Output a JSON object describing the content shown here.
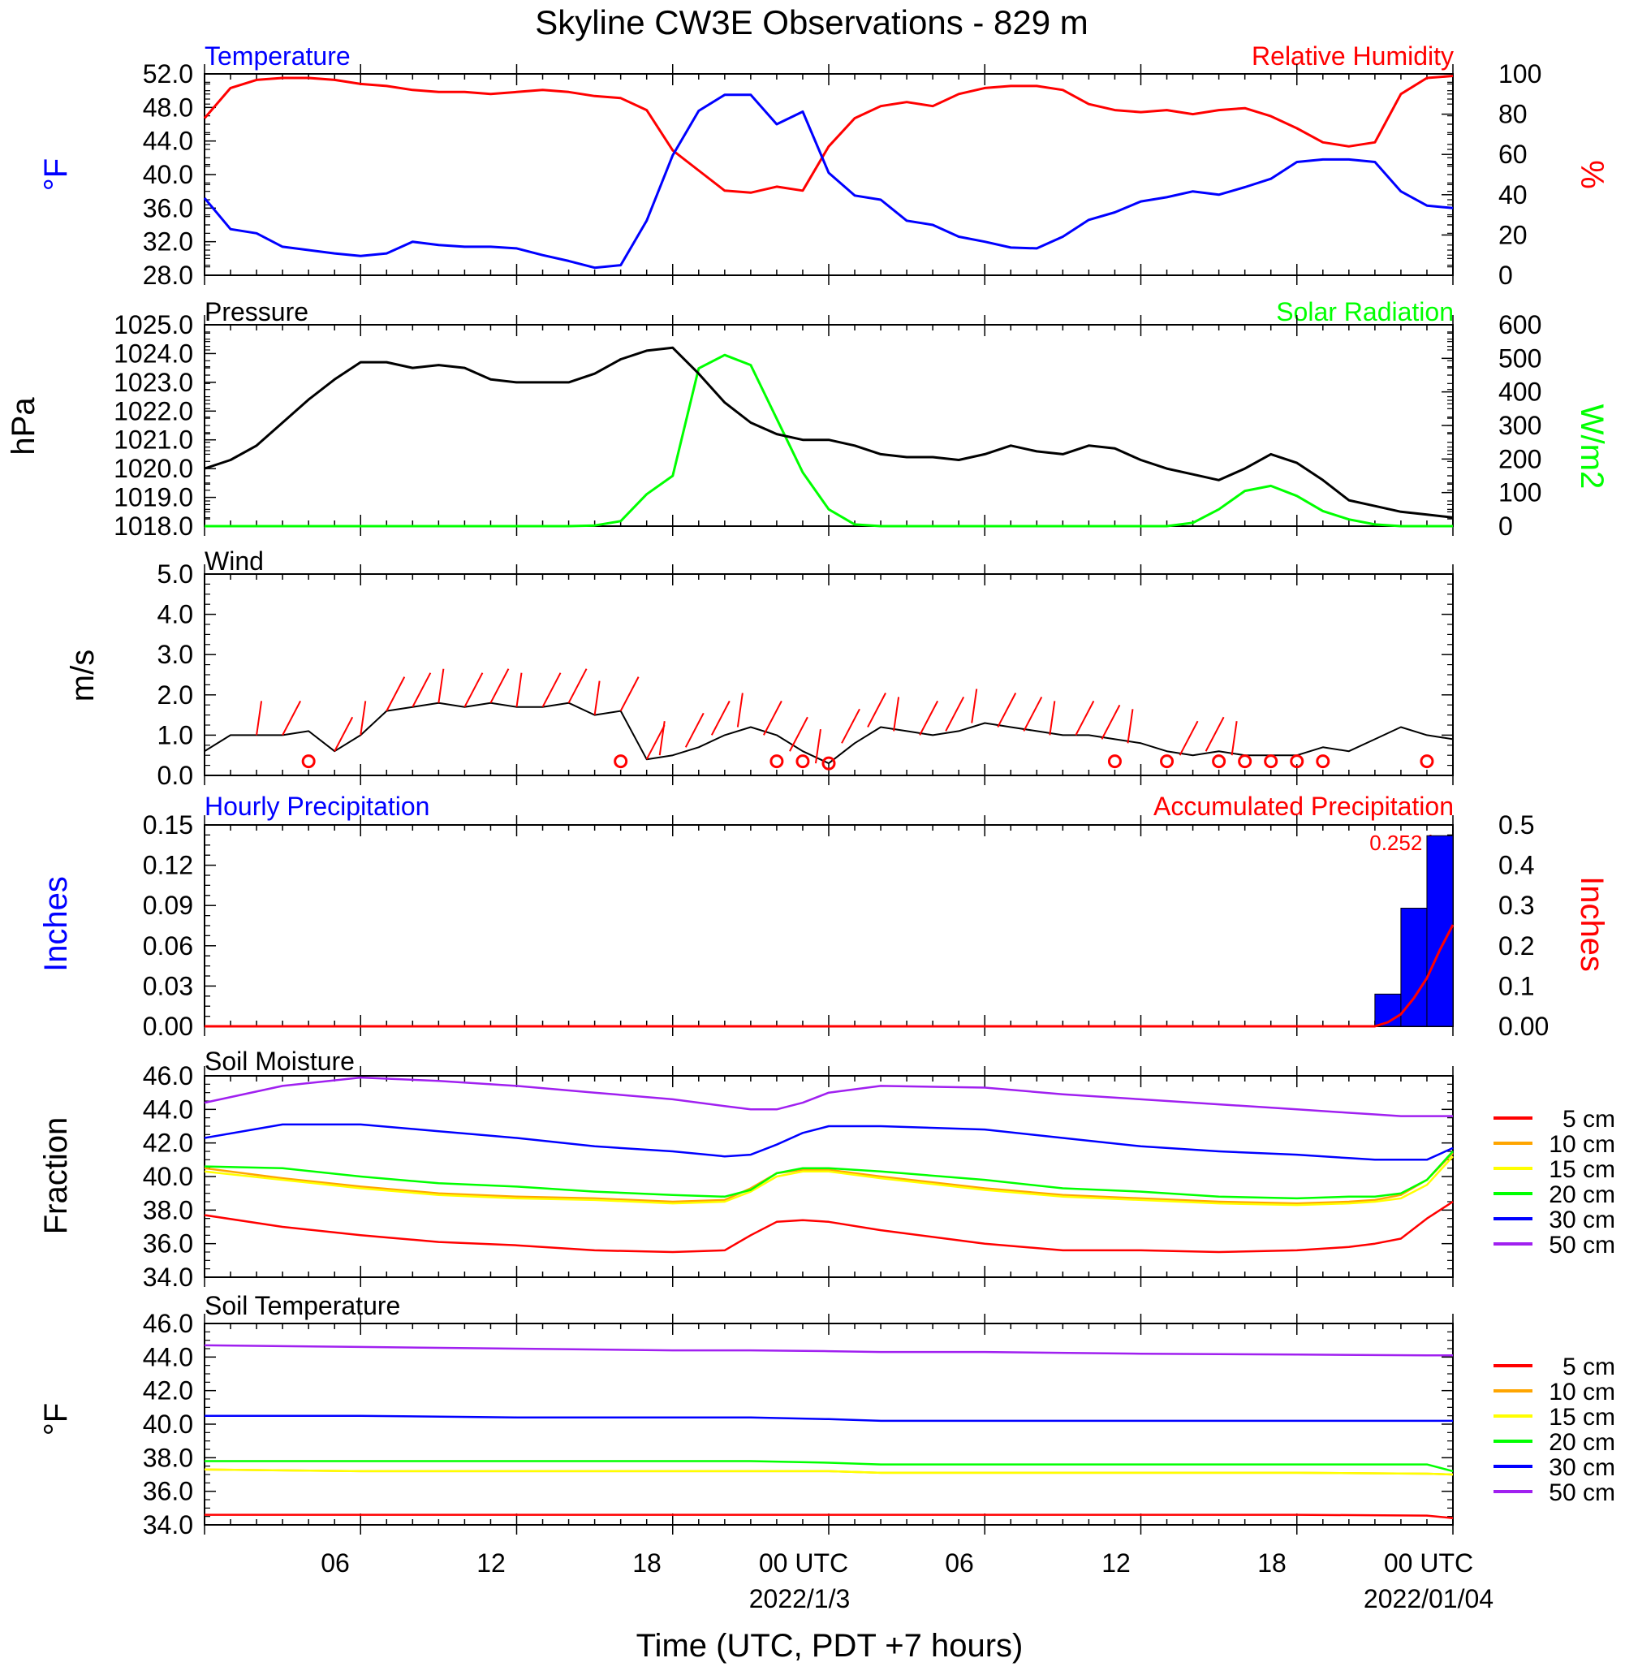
{
  "title": "Skyline CW3E Observations - 829 m",
  "x_axis": {
    "label": "Time (UTC, PDT +7 hours)",
    "tick_labels": [
      "06",
      "12",
      "18",
      "00 UTC",
      "06",
      "12",
      "18",
      "00 UTC"
    ],
    "date_labels": [
      "2022/1/3",
      "2022/01/04"
    ]
  },
  "colors": {
    "temperature": "#0000ff",
    "humidity": "#ff0000",
    "pressure": "#000000",
    "solar": "#00ff00",
    "wind": "#000000",
    "barb": "#ff0000",
    "hourly_precip": "#0000ff",
    "accum_precip": "#ff0000",
    "d5": "#ff0000",
    "d10": "#ffa500",
    "d15": "#ffff00",
    "d20": "#00ff00",
    "d30": "#0000ff",
    "d50": "#a020f0"
  },
  "chart_data": [
    {
      "type": "line",
      "title_left": "Temperature",
      "title_right": "Relative Humidity",
      "ylabel_left": "°F",
      "ylabel_right": "%",
      "ylim_left": [
        28,
        52
      ],
      "ylim_right": [
        0,
        100
      ],
      "yticks_left": [
        "28.0",
        "32.0",
        "36.0",
        "40.0",
        "44.0",
        "48.0",
        "52.0"
      ],
      "yticks_right": [
        "0",
        "20",
        "40",
        "60",
        "80",
        "100"
      ],
      "x_hours": [
        0,
        1,
        2,
        3,
        4,
        5,
        6,
        7,
        8,
        9,
        10,
        11,
        12,
        13,
        14,
        15,
        16,
        17,
        18,
        19,
        20,
        21,
        22,
        23,
        24,
        25,
        26,
        27,
        28,
        29,
        30,
        31,
        32,
        33,
        34,
        35,
        36,
        37,
        38,
        39,
        40,
        41,
        42,
        43,
        44,
        45,
        46,
        47,
        48
      ],
      "series": [
        {
          "name": "Temperature",
          "axis": "left",
          "values": [
            37.2,
            33.5,
            33.0,
            31.4,
            31.0,
            30.6,
            30.3,
            30.6,
            32.0,
            31.6,
            31.4,
            31.4,
            31.2,
            30.4,
            29.7,
            28.9,
            29.2,
            34.5,
            42.3,
            47.6,
            49.5,
            49.5,
            46.0,
            47.5,
            40.2,
            37.5,
            37.0,
            34.5,
            34.0,
            32.6,
            32.0,
            31.3,
            31.2,
            32.6,
            34.6,
            35.5,
            36.8,
            37.3,
            38.0,
            37.6,
            38.5,
            39.5,
            41.5,
            41.8,
            41.8,
            41.5,
            38.0,
            36.3,
            36.0
          ]
        },
        {
          "name": "Relative Humidity",
          "axis": "left_pct",
          "values": [
            78,
            93,
            97,
            98,
            98,
            97,
            95,
            94,
            92,
            91,
            91,
            90,
            91,
            92,
            91,
            89,
            88,
            82,
            62,
            52,
            42,
            41,
            44,
            42,
            64,
            78,
            84,
            86,
            84,
            90,
            93,
            94,
            94,
            92,
            85,
            82,
            81,
            82,
            80,
            82,
            83,
            79,
            73,
            66,
            64,
            66,
            90,
            98,
            99
          ]
        }
      ]
    },
    {
      "type": "line",
      "title_left": "Pressure",
      "title_right": "Solar Radiation",
      "ylabel_left": "hPa",
      "ylabel_right": "W/m2",
      "ylim_left": [
        1018,
        1025
      ],
      "ylim_right": [
        0,
        600
      ],
      "yticks_left": [
        "1018.0",
        "1019.0",
        "1020.0",
        "1021.0",
        "1022.0",
        "1023.0",
        "1024.0",
        "1025.0"
      ],
      "yticks_right": [
        "0",
        "100",
        "200",
        "300",
        "400",
        "500",
        "600"
      ],
      "x_hours": [
        0,
        1,
        2,
        3,
        4,
        5,
        6,
        7,
        8,
        9,
        10,
        11,
        12,
        13,
        14,
        15,
        16,
        17,
        18,
        19,
        20,
        21,
        22,
        23,
        24,
        25,
        26,
        27,
        28,
        29,
        30,
        31,
        32,
        33,
        34,
        35,
        36,
        37,
        38,
        39,
        40,
        41,
        42,
        43,
        44,
        45,
        46,
        47,
        48
      ],
      "series": [
        {
          "name": "Pressure",
          "axis": "left",
          "values": [
            1020.0,
            1020.3,
            1020.8,
            1021.6,
            1022.4,
            1023.1,
            1023.7,
            1023.7,
            1023.5,
            1023.6,
            1023.5,
            1023.1,
            1023.0,
            1023.0,
            1023.0,
            1023.3,
            1023.8,
            1024.1,
            1024.2,
            1023.3,
            1022.3,
            1021.6,
            1021.2,
            1021.0,
            1021.0,
            1020.8,
            1020.5,
            1020.4,
            1020.4,
            1020.3,
            1020.5,
            1020.8,
            1020.6,
            1020.5,
            1020.8,
            1020.7,
            1020.3,
            1020.0,
            1019.8,
            1019.6,
            1020.0,
            1020.5,
            1020.2,
            1019.6,
            1018.9,
            1018.7,
            1018.5,
            1018.4,
            1018.3
          ]
        },
        {
          "name": "Solar Radiation",
          "axis": "right",
          "values": [
            0,
            0,
            0,
            0,
            0,
            0,
            0,
            0,
            0,
            0,
            0,
            0,
            0,
            0,
            0,
            2,
            15,
            95,
            150,
            470,
            510,
            480,
            320,
            160,
            50,
            5,
            0,
            0,
            0,
            0,
            0,
            0,
            0,
            0,
            0,
            0,
            0,
            0,
            10,
            50,
            105,
            120,
            90,
            45,
            20,
            5,
            0,
            0,
            0
          ]
        }
      ]
    },
    {
      "type": "line",
      "title_left": "Wind",
      "ylabel_left": "m/s",
      "ylim_left": [
        0,
        5
      ],
      "yticks_left": [
        "0.0",
        "1.0",
        "2.0",
        "3.0",
        "4.0",
        "5.0"
      ],
      "x_hours": [
        0,
        1,
        2,
        3,
        4,
        5,
        6,
        7,
        8,
        9,
        10,
        11,
        12,
        13,
        14,
        15,
        16,
        17,
        18,
        19,
        20,
        21,
        22,
        23,
        24,
        25,
        26,
        27,
        28,
        29,
        30,
        31,
        32,
        33,
        34,
        35,
        36,
        37,
        38,
        39,
        40,
        41,
        42,
        43,
        44,
        45,
        46,
        47,
        48
      ],
      "series": [
        {
          "name": "Wind",
          "axis": "left",
          "values": [
            0.6,
            1.0,
            1.0,
            1.0,
            1.1,
            0.6,
            1.0,
            1.6,
            1.7,
            1.8,
            1.7,
            1.8,
            1.7,
            1.7,
            1.8,
            1.5,
            1.6,
            0.4,
            0.5,
            0.7,
            1.0,
            1.2,
            1.0,
            0.6,
            0.3,
            0.8,
            1.2,
            1.1,
            1.0,
            1.1,
            1.3,
            1.2,
            1.1,
            1.0,
            1.0,
            0.9,
            0.8,
            0.6,
            0.5,
            0.6,
            0.5,
            0.5,
            0.5,
            0.7,
            0.6,
            0.9,
            1.2,
            1.0,
            0.9
          ]
        }
      ],
      "barbs_x_hours": [
        2,
        3,
        5,
        6,
        7,
        8,
        9,
        10,
        11,
        12,
        13,
        14,
        15,
        16,
        17,
        17.5,
        18.5,
        19.5,
        20.5,
        21.5,
        22.5,
        23.5,
        24.5,
        25.5,
        26.5,
        27.5,
        28.5,
        29.5,
        30.5,
        31.5,
        32.5,
        33.5,
        34.5,
        35.5,
        37.5,
        38.5,
        39.5
      ],
      "calm_x_hours": [
        4,
        16,
        22,
        23,
        24,
        35,
        37,
        39,
        40,
        41,
        42,
        43,
        47
      ]
    },
    {
      "type": "bar",
      "title_left": "Hourly Precipitation",
      "title_right": "Accumulated Precipitation",
      "annotation": "0.252 in.",
      "ylabel_left": "Inches",
      "ylabel_right": "Inches",
      "ylim_left": [
        0,
        0.15
      ],
      "ylim_right": [
        0,
        0.5
      ],
      "yticks_left": [
        "0.00",
        "0.03",
        "0.06",
        "0.09",
        "0.12",
        "0.15"
      ],
      "yticks_right": [
        "0.00",
        "0.1",
        "0.2",
        "0.3",
        "0.4",
        "0.5"
      ],
      "bars": [
        {
          "x_start": 45,
          "x_end": 46,
          "value": 0.024
        },
        {
          "x_start": 46,
          "x_end": 47,
          "value": 0.088
        },
        {
          "x_start": 47,
          "x_end": 48,
          "value": 0.142
        }
      ],
      "accum": {
        "x_hours": [
          0,
          45,
          45.5,
          46,
          46.5,
          47,
          47.5,
          48
        ],
        "values": [
          0,
          0,
          0.01,
          0.03,
          0.07,
          0.12,
          0.19,
          0.252
        ]
      }
    },
    {
      "type": "line",
      "title_left": "Soil Moisture",
      "ylabel_left": "Fraction",
      "ylim_left": [
        34,
        46
      ],
      "yticks_left": [
        "34.0",
        "36.0",
        "38.0",
        "40.0",
        "42.0",
        "44.0",
        "46.0"
      ],
      "legend": [
        "5 cm",
        "10 cm",
        "15 cm",
        "20 cm",
        "30 cm",
        "50 cm"
      ],
      "x_hours": [
        0,
        3,
        6,
        9,
        12,
        15,
        18,
        20,
        21,
        22,
        23,
        24,
        26,
        30,
        33,
        36,
        39,
        42,
        44,
        45,
        46,
        47,
        48
      ],
      "series": [
        {
          "name": "5 cm",
          "values": [
            37.7,
            37.0,
            36.5,
            36.1,
            35.9,
            35.6,
            35.5,
            35.6,
            36.5,
            37.3,
            37.4,
            37.3,
            36.8,
            36.0,
            35.6,
            35.6,
            35.5,
            35.6,
            35.8,
            36.0,
            36.3,
            37.5,
            38.5
          ]
        },
        {
          "name": "10 cm",
          "values": [
            40.5,
            39.9,
            39.4,
            39.0,
            38.8,
            38.7,
            38.5,
            38.6,
            39.3,
            40.2,
            40.4,
            40.4,
            40.0,
            39.3,
            38.9,
            38.7,
            38.5,
            38.4,
            38.5,
            38.6,
            38.9,
            39.8,
            41.4
          ]
        },
        {
          "name": "15 cm",
          "values": [
            40.3,
            39.8,
            39.3,
            38.9,
            38.7,
            38.6,
            38.4,
            38.5,
            39.1,
            40.0,
            40.3,
            40.3,
            39.9,
            39.2,
            38.8,
            38.6,
            38.4,
            38.3,
            38.4,
            38.5,
            38.7,
            39.5,
            41.2
          ]
        },
        {
          "name": "20 cm",
          "values": [
            40.6,
            40.5,
            40.0,
            39.6,
            39.4,
            39.1,
            38.9,
            38.8,
            39.2,
            40.2,
            40.5,
            40.5,
            40.3,
            39.8,
            39.3,
            39.1,
            38.8,
            38.7,
            38.8,
            38.8,
            39.0,
            39.8,
            41.5
          ]
        },
        {
          "name": "30 cm",
          "values": [
            42.3,
            43.1,
            43.1,
            42.7,
            42.3,
            41.8,
            41.5,
            41.2,
            41.3,
            41.9,
            42.6,
            43.0,
            43.0,
            42.8,
            42.3,
            41.8,
            41.5,
            41.3,
            41.1,
            41.0,
            41.0,
            41.0,
            41.7
          ]
        },
        {
          "name": "50 cm",
          "values": [
            44.4,
            45.4,
            45.9,
            45.7,
            45.4,
            45.0,
            44.6,
            44.2,
            44.0,
            44.0,
            44.4,
            45.0,
            45.4,
            45.3,
            44.9,
            44.6,
            44.3,
            44.0,
            43.8,
            43.7,
            43.6,
            43.6,
            43.6
          ]
        }
      ]
    },
    {
      "type": "line",
      "title_left": "Soil Temperature",
      "ylabel_left": "°F",
      "ylim_left": [
        34,
        46
      ],
      "yticks_left": [
        "34.0",
        "36.0",
        "38.0",
        "40.0",
        "42.0",
        "44.0",
        "46.0"
      ],
      "legend": [
        "5 cm",
        "10 cm",
        "15 cm",
        "20 cm",
        "30 cm",
        "50 cm"
      ],
      "x_hours": [
        0,
        6,
        12,
        18,
        21,
        24,
        26,
        30,
        36,
        42,
        47,
        48
      ],
      "series": [
        {
          "name": "5 cm",
          "values": [
            34.6,
            34.6,
            34.6,
            34.6,
            34.6,
            34.6,
            34.6,
            34.6,
            34.6,
            34.6,
            34.55,
            34.4
          ]
        },
        {
          "name": "10 cm",
          "values": [
            37.3,
            37.2,
            37.2,
            37.2,
            37.2,
            37.2,
            37.1,
            37.1,
            37.1,
            37.1,
            37.05,
            37.0
          ]
        },
        {
          "name": "15 cm",
          "values": [
            37.3,
            37.2,
            37.2,
            37.2,
            37.2,
            37.2,
            37.1,
            37.1,
            37.1,
            37.1,
            37.05,
            37.0
          ]
        },
        {
          "name": "20 cm",
          "values": [
            37.8,
            37.8,
            37.8,
            37.8,
            37.8,
            37.7,
            37.6,
            37.6,
            37.6,
            37.6,
            37.6,
            37.2
          ]
        },
        {
          "name": "30 cm",
          "values": [
            40.5,
            40.5,
            40.4,
            40.4,
            40.4,
            40.3,
            40.2,
            40.2,
            40.2,
            40.2,
            40.2,
            40.2
          ]
        },
        {
          "name": "50 cm",
          "values": [
            44.7,
            44.6,
            44.5,
            44.4,
            44.4,
            44.35,
            44.3,
            44.3,
            44.2,
            44.15,
            44.1,
            44.1
          ]
        }
      ]
    }
  ]
}
